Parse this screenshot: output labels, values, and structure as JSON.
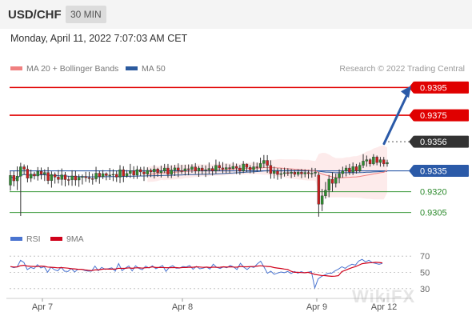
{
  "header": {
    "symbol": "USD/CHF",
    "timeframe": "30 MIN"
  },
  "datetime": "Monday, April 11, 2022 7:07:03 AM CET",
  "legend": {
    "items": [
      {
        "label": "MA 20 + Bollinger Bands",
        "color": "#f08080"
      },
      {
        "label": "MA 50",
        "color": "#2b5a9e"
      }
    ],
    "credit": "Research © 2022 Trading Central"
  },
  "rsi_legend": {
    "items": [
      {
        "label": "RSI",
        "color": "#4a74d0"
      },
      {
        "label": "9MA",
        "color": "#d0021b"
      }
    ]
  },
  "watermark": "WikiFX",
  "chart_data": [
    {
      "type": "candlestick",
      "x_ticks": [
        "Apr 7",
        "Apr 8",
        "Apr 9",
        "Apr 12"
      ],
      "levels": [
        {
          "value": 0.9395,
          "label": "0.9395",
          "style": "resistance"
        },
        {
          "value": 0.9375,
          "label": "0.9375",
          "style": "resistance"
        },
        {
          "value": 0.9356,
          "label": "0.9356",
          "style": "current"
        },
        {
          "value": 0.9335,
          "label": "0.9335",
          "style": "pivot"
        },
        {
          "value": 0.932,
          "label": "0.9320",
          "style": "support"
        },
        {
          "value": 0.9305,
          "label": "0.9305",
          "style": "support"
        }
      ],
      "ylim": [
        0.9295,
        0.9405
      ],
      "candles": [
        [
          0.93247,
          0.93317,
          0.93207,
          0.93347
        ],
        [
          0.93317,
          0.93278,
          0.93238,
          0.93348
        ],
        [
          0.93278,
          0.93312,
          0.93211,
          0.93382
        ],
        [
          0.93312,
          0.93379,
          0.93025,
          0.93408
        ],
        [
          0.93379,
          0.93362,
          0.93322,
          0.93396
        ],
        [
          0.93362,
          0.93297,
          0.93267,
          0.9339
        ],
        [
          0.93297,
          0.93327,
          0.9327,
          0.93359
        ],
        [
          0.93327,
          0.93313,
          0.93288,
          0.93343
        ],
        [
          0.93313,
          0.93347,
          0.9328,
          0.93377
        ],
        [
          0.93347,
          0.93325,
          0.93288,
          0.93374
        ],
        [
          0.93325,
          0.93338,
          0.93277,
          0.93361
        ],
        [
          0.93338,
          0.9328,
          0.93254,
          0.93377
        ],
        [
          0.9328,
          0.93324,
          0.93229,
          0.93346
        ],
        [
          0.93324,
          0.93305,
          0.93258,
          0.93339
        ],
        [
          0.93305,
          0.93288,
          0.93259,
          0.93356
        ],
        [
          0.93288,
          0.93321,
          0.93245,
          0.93367
        ],
        [
          0.93321,
          0.93287,
          0.93238,
          0.93342
        ],
        [
          0.93287,
          0.93286,
          0.93246,
          0.93312
        ],
        [
          0.93286,
          0.93313,
          0.93242,
          0.93354
        ],
        [
          0.93313,
          0.93284,
          0.93243,
          0.93351
        ],
        [
          0.93284,
          0.93304,
          0.93235,
          0.93325
        ],
        [
          0.93304,
          0.93309,
          0.93252,
          0.93324
        ],
        [
          0.93309,
          0.93301,
          0.93271,
          0.93343
        ],
        [
          0.93301,
          0.93294,
          0.93264,
          0.93343
        ],
        [
          0.93294,
          0.93292,
          0.93251,
          0.9333
        ],
        [
          0.93292,
          0.93333,
          0.9327,
          0.93379
        ],
        [
          0.93333,
          0.93308,
          0.93257,
          0.93352
        ],
        [
          0.93308,
          0.9333,
          0.93291,
          0.93356
        ],
        [
          0.9333,
          0.93316,
          0.93282,
          0.93339
        ],
        [
          0.93316,
          0.9332,
          0.93284,
          0.9337
        ],
        [
          0.9332,
          0.93325,
          0.93276,
          0.93361
        ],
        [
          0.93325,
          0.93305,
          0.9327,
          0.93353
        ],
        [
          0.93305,
          0.93358,
          0.93262,
          0.93391
        ],
        [
          0.93358,
          0.93312,
          0.93268,
          0.93383
        ],
        [
          0.93312,
          0.93331,
          0.93301,
          0.93356
        ],
        [
          0.93331,
          0.93351,
          0.93299,
          0.934
        ],
        [
          0.93351,
          0.93319,
          0.93292,
          0.93383
        ],
        [
          0.93319,
          0.93359,
          0.93292,
          0.93386
        ],
        [
          0.93359,
          0.93342,
          0.93312,
          0.93378
        ],
        [
          0.93342,
          0.93327,
          0.93277,
          0.9338
        ],
        [
          0.93327,
          0.93354,
          0.93303,
          0.93375
        ],
        [
          0.93354,
          0.93342,
          0.93305,
          0.93367
        ],
        [
          0.93342,
          0.93363,
          0.93295,
          0.93391
        ],
        [
          0.93363,
          0.93337,
          0.93307,
          0.93372
        ],
        [
          0.93337,
          0.93349,
          0.93302,
          0.93387
        ],
        [
          0.93349,
          0.9337,
          0.93333,
          0.934
        ],
        [
          0.9337,
          0.93325,
          0.933,
          0.934
        ],
        [
          0.93325,
          0.93356,
          0.93298,
          0.93389
        ],
        [
          0.93356,
          0.93371,
          0.93313,
          0.93393
        ],
        [
          0.93371,
          0.93352,
          0.93305,
          0.93404
        ],
        [
          0.93352,
          0.9335,
          0.93327,
          0.93393
        ],
        [
          0.9335,
          0.93365,
          0.93317,
          0.93394
        ],
        [
          0.93365,
          0.93361,
          0.93318,
          0.93396
        ],
        [
          0.93361,
          0.93378,
          0.93336,
          0.93397
        ],
        [
          0.93378,
          0.93349,
          0.93328,
          0.93406
        ],
        [
          0.93349,
          0.9337,
          0.93307,
          0.93385
        ],
        [
          0.9337,
          0.93351,
          0.93323,
          0.93393
        ],
        [
          0.93351,
          0.93358,
          0.93306,
          0.93389
        ],
        [
          0.93358,
          0.93367,
          0.93328,
          0.9341
        ],
        [
          0.93367,
          0.9335,
          0.93316,
          0.93383
        ],
        [
          0.9335,
          0.93389,
          0.9333,
          0.93431
        ],
        [
          0.93389,
          0.93371,
          0.93347,
          0.93417
        ],
        [
          0.93371,
          0.93362,
          0.93333,
          0.93413
        ],
        [
          0.93362,
          0.93373,
          0.93332,
          0.93401
        ],
        [
          0.93373,
          0.93366,
          0.93331,
          0.93396
        ],
        [
          0.93366,
          0.93382,
          0.93357,
          0.93412
        ],
        [
          0.93382,
          0.9337,
          0.93327,
          0.93402
        ],
        [
          0.9337,
          0.9335,
          0.93322,
          0.93392
        ],
        [
          0.9335,
          0.93399,
          0.93334,
          0.93421
        ],
        [
          0.93399,
          0.93375,
          0.9334,
          0.93403
        ],
        [
          0.93375,
          0.93358,
          0.93333,
          0.93391
        ],
        [
          0.93358,
          0.93379,
          0.9333,
          0.93415
        ],
        [
          0.93379,
          0.93373,
          0.93344,
          0.93409
        ],
        [
          0.93373,
          0.93403,
          0.93346,
          0.93445
        ],
        [
          0.93403,
          0.93425,
          0.93371,
          0.93464
        ],
        [
          0.93425,
          0.93389,
          0.93335,
          0.93463
        ],
        [
          0.93389,
          0.93331,
          0.93293,
          0.93426
        ],
        [
          0.93331,
          0.93348,
          0.93294,
          0.9338
        ],
        [
          0.93348,
          0.93324,
          0.93286,
          0.9337
        ],
        [
          0.93324,
          0.9333,
          0.93292,
          0.9337
        ],
        [
          0.9333,
          0.93337,
          0.93309,
          0.93373
        ],
        [
          0.93337,
          0.93332,
          0.93314,
          0.93369
        ],
        [
          0.93332,
          0.9334,
          0.93298,
          0.93363
        ],
        [
          0.9334,
          0.93325,
          0.93307,
          0.93357
        ],
        [
          0.93325,
          0.9334,
          0.9331,
          0.93361
        ],
        [
          0.9334,
          0.93328,
          0.93297,
          0.93364
        ],
        [
          0.93328,
          0.93338,
          0.93303,
          0.93361
        ],
        [
          0.93338,
          0.9333,
          0.93294,
          0.93356
        ],
        [
          0.9333,
          0.93333,
          0.93301,
          0.93372
        ],
        [
          0.93333,
          0.9334,
          0.93308,
          0.9337
        ],
        [
          0.9332,
          0.9311,
          0.9302,
          0.9334
        ],
        [
          0.9311,
          0.9317,
          0.9306,
          0.9322
        ],
        [
          0.9317,
          0.9321,
          0.9315,
          0.9327
        ],
        [
          0.9321,
          0.9329,
          0.9316,
          0.9332
        ],
        [
          0.9329,
          0.9326,
          0.932,
          0.9334
        ],
        [
          0.9326,
          0.933,
          0.9323,
          0.9333
        ],
        [
          0.933,
          0.9333,
          0.9326,
          0.9336
        ],
        [
          0.9333,
          0.9335,
          0.933,
          0.9338
        ],
        [
          0.9335,
          0.9337,
          0.9331,
          0.9339
        ],
        [
          0.9337,
          0.9334,
          0.9332,
          0.934
        ],
        [
          0.9334,
          0.9338,
          0.9332,
          0.9341
        ],
        [
          0.9338,
          0.9335,
          0.9333,
          0.934
        ],
        [
          0.9335,
          0.9339,
          0.9334,
          0.9341
        ],
        [
          0.9339,
          0.9342,
          0.9337,
          0.9347
        ],
        [
          0.9342,
          0.9343,
          0.9338,
          0.9346
        ],
        [
          0.9343,
          0.934,
          0.9338,
          0.9344
        ],
        [
          0.934,
          0.9345,
          0.9339,
          0.9347
        ],
        [
          0.9345,
          0.9341,
          0.9339,
          0.9346
        ],
        [
          0.9341,
          0.9343,
          0.9338,
          0.9345
        ],
        [
          0.9343,
          0.934,
          0.9338,
          0.9345
        ],
        [
          0.934,
          0.9341,
          0.9338,
          0.9343
        ]
      ]
    },
    {
      "type": "line",
      "x_ticks": [
        "Apr 7",
        "Apr 8",
        "Apr 9",
        "Apr 12"
      ],
      "y_ticks": [
        70,
        50,
        30
      ],
      "ylim": [
        20,
        80
      ],
      "series": [
        {
          "name": "RSI",
          "color": "#4a74d0",
          "values": [
            57.2,
            55.8,
            56.8,
            64.9,
            62.2,
            53.4,
            56.1,
            54.6,
            59.5,
            55.5,
            57.0,
            50.2,
            56.6,
            53.3,
            52.0,
            56.4,
            51.5,
            51.1,
            54.8,
            50.5,
            53.9,
            53.9,
            52.3,
            51.6,
            51.6,
            57.8,
            52.1,
            56.2,
            53.7,
            54.5,
            55.6,
            51.5,
            60.9,
            52.2,
            55.2,
            58.0,
            51.9,
            58.2,
            55.0,
            53.2,
            57.8,
            55.4,
            58.1,
            54.5,
            56.3,
            58.5,
            51.3,
            56.4,
            58.3,
            55.2,
            55.3,
            57.3,
            56.6,
            58.6,
            53.8,
            57.4,
            54.4,
            55.2,
            56.6,
            54.1,
            60.1,
            56.2,
            54.8,
            56.7,
            55.7,
            58.6,
            56.7,
            53.5,
            61.2,
            56.4,
            53.5,
            57.1,
            56.1,
            60.4,
            63.8,
            56.6,
            48.9,
            51.5,
            47.7,
            49.2,
            50.5,
            49.7,
            51.2,
            48.6,
            51.2,
            49.1,
            51.0,
            49.4,
            50.1,
            51.2,
            31.0,
            42.0,
            45.0,
            47.0,
            49.0,
            49.0,
            52.0,
            54.0,
            57.0,
            55.0,
            58.0,
            60.0,
            59.0,
            64.0,
            66.0,
            63.0,
            65.0,
            62.0,
            61.0,
            60.0,
            61.0
          ]
        },
        {
          "name": "9MA",
          "color": "#d0021b",
          "values": [
            57.2,
            56.6,
            56.8,
            58.3,
            58.8,
            57.9,
            57.5,
            57.3,
            57.3,
            57.8,
            57.5,
            56.6,
            56.3,
            56.0,
            55.6,
            55.9,
            55.6,
            55.2,
            54.5,
            54.3,
            53.8,
            53.8,
            53.1,
            52.6,
            52.2,
            53.0,
            53.0,
            53.8,
            54.2,
            54.0,
            54.1,
            54.0,
            55.1,
            54.9,
            55.0,
            55.6,
            55.0,
            55.6,
            55.7,
            55.2,
            55.8,
            55.9,
            56.8,
            56.0,
            56.0,
            56.1,
            55.8,
            55.8,
            56.0,
            55.9,
            55.6,
            56.0,
            56.0,
            56.4,
            56.3,
            56.9,
            56.6,
            56.2,
            56.5,
            56.0,
            56.5,
            56.2,
            56.3,
            56.9,
            56.5,
            56.9,
            56.6,
            56.4,
            57.4,
            57.0,
            56.9,
            57.2,
            57.2,
            57.8,
            58.2,
            57.7,
            57.3,
            57.0,
            55.9,
            55.3,
            54.8,
            54.1,
            53.6,
            51.4,
            50.1,
            50.1,
            49.8,
            49.6,
            50.1,
            48.9,
            47.5,
            46.9,
            46.3,
            46.1,
            45.6,
            45.2,
            45.4,
            46.0,
            51.0,
            52.6,
            54.2,
            55.8,
            57.1,
            58.9,
            60.7,
            61.3,
            61.8,
            62.0,
            62.4,
            62.2,
            61.7
          ]
        }
      ]
    }
  ]
}
